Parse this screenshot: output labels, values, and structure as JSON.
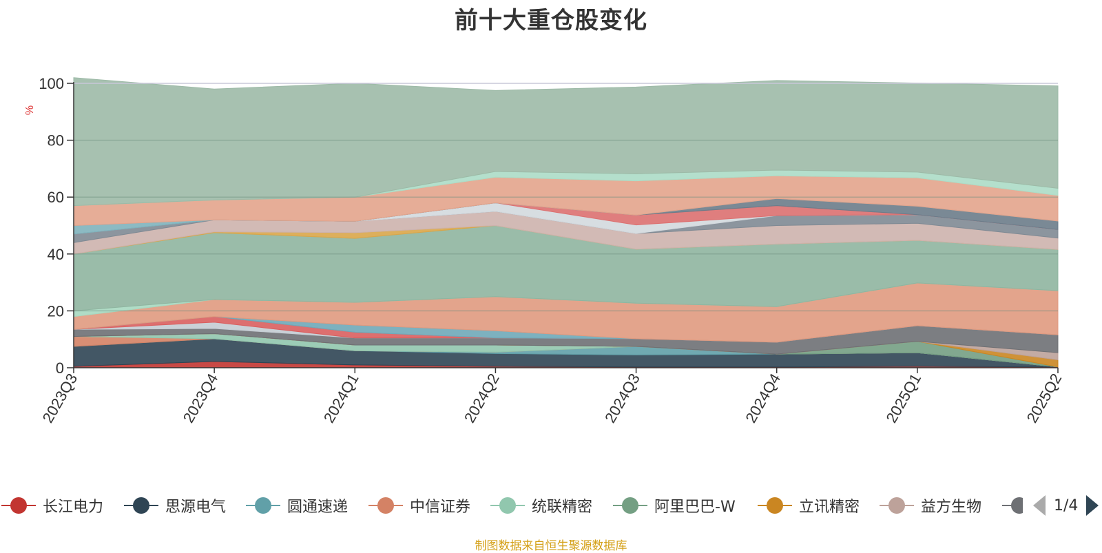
{
  "title": "前十大重仓股变化",
  "source_note": "制图数据来自恒生聚源数据库",
  "pager": {
    "text": "1/4"
  },
  "chart_data": {
    "type": "area",
    "stacked": true,
    "title": "前十大重仓股变化",
    "ylabel": "%",
    "ylim": [
      0,
      100
    ],
    "yticks": [
      0,
      20,
      40,
      60,
      80,
      100
    ],
    "grid": true,
    "legend_position": "bottom",
    "categories": [
      "2023Q3",
      "2023Q4",
      "2024Q1",
      "2024Q2",
      "2024Q3",
      "2024Q4",
      "2025Q1",
      "2025Q2"
    ],
    "series": [
      {
        "name": "长江电力",
        "color": "#c23531",
        "values": [
          0.5,
          2.2,
          1.0,
          0.5,
          0.3,
          0.3,
          0.5,
          0.3
        ]
      },
      {
        "name": "思源电气",
        "color": "#2f4554",
        "values": [
          7.0,
          8.0,
          5.0,
          4.5,
          4.2,
          4.5,
          4.8,
          0.0
        ]
      },
      {
        "name": "圆通速递",
        "color": "#61a0a8",
        "values": [
          0.0,
          0.0,
          0.0,
          0.5,
          3.0,
          0.0,
          0.0,
          0.0
        ]
      },
      {
        "name": "中信证券",
        "color": "#d48265",
        "values": [
          3.5,
          0.0,
          0.0,
          0.0,
          0.0,
          0.0,
          0.0,
          0.0
        ]
      },
      {
        "name": "统联精密",
        "color": "#91c7ae",
        "values": [
          0.0,
          1.8,
          2.0,
          2.5,
          0.0,
          0.0,
          0.0,
          0.0
        ]
      },
      {
        "name": "阿里巴巴-W",
        "color": "#749f83",
        "values": [
          0.0,
          0.0,
          0.0,
          0.0,
          0.0,
          0.0,
          4.0,
          0.0
        ]
      },
      {
        "name": "立讯精密",
        "color": "#ca8622",
        "values": [
          0.0,
          0.0,
          0.0,
          0.0,
          0.0,
          0.0,
          0.0,
          2.5
        ]
      },
      {
        "name": "益方生物",
        "color": "#bda29a",
        "values": [
          0.0,
          0.0,
          0.0,
          0.0,
          0.0,
          0.0,
          0.0,
          2.5
        ]
      },
      {
        "name": "",
        "color": "#6e7074",
        "values": [
          2.5,
          1.8,
          2.5,
          2.5,
          2.7,
          4.2,
          5.5,
          6.3
        ]
      },
      {
        "name": "",
        "color": "#c4ccd3",
        "values": [
          0.0,
          2.2,
          0.0,
          0.0,
          0.0,
          0.0,
          0.0,
          0.0
        ]
      },
      {
        "name": "",
        "color": "#d95f5f",
        "values": [
          0.0,
          2.0,
          2.0,
          0.0,
          0.0,
          0.0,
          0.0,
          0.0
        ]
      },
      {
        "name": "",
        "color": "#6fa8b8",
        "values": [
          0.0,
          0.0,
          2.5,
          2.5,
          0.0,
          0.0,
          0.0,
          0.0
        ]
      },
      {
        "name": "",
        "color": "#e09a7f",
        "values": [
          4.5,
          6.0,
          8.0,
          12.0,
          12.5,
          12.5,
          15.0,
          15.5
        ]
      },
      {
        "name": "",
        "color": "#a7d8c0",
        "values": [
          2.0,
          0.0,
          0.0,
          0.0,
          0.0,
          0.0,
          0.0,
          0.0
        ]
      },
      {
        "name": "",
        "color": "#8fb5a0",
        "values": [
          20.0,
          23.5,
          22.5,
          25.0,
          19.0,
          22.0,
          15.0,
          14.5
        ]
      },
      {
        "name": "",
        "color": "#d9a64a",
        "values": [
          0.0,
          0.3,
          2.0,
          0.0,
          0.0,
          0.0,
          0.0,
          0.0
        ]
      },
      {
        "name": "",
        "color": "#cdb3ad",
        "values": [
          4.0,
          4.2,
          4.0,
          5.0,
          5.5,
          6.5,
          6.0,
          4.0
        ]
      },
      {
        "name": "",
        "color": "#7f8a94",
        "values": [
          3.0,
          0.0,
          0.0,
          0.0,
          0.0,
          3.5,
          3.0,
          3.0
        ]
      },
      {
        "name": "",
        "color": "#d3d9de",
        "values": [
          0.0,
          0.0,
          0.0,
          3.0,
          3.0,
          0.0,
          0.0,
          0.0
        ]
      },
      {
        "name": "",
        "color": "#dc7070",
        "values": [
          0.0,
          0.0,
          0.0,
          0.0,
          3.5,
          3.5,
          0.0,
          0.0
        ]
      },
      {
        "name": "",
        "color": "#6b7c8a",
        "values": [
          0.0,
          0.0,
          0.0,
          0.0,
          0.0,
          2.5,
          3.0,
          3.0
        ]
      },
      {
        "name": "",
        "color": "#7fb3bd",
        "values": [
          3.0,
          0.0,
          0.0,
          0.0,
          0.0,
          0.0,
          0.0,
          0.0
        ]
      },
      {
        "name": "",
        "color": "#e3a48c",
        "values": [
          7.0,
          7.0,
          8.5,
          9.0,
          12.0,
          8.0,
          10.0,
          9.0
        ]
      },
      {
        "name": "",
        "color": "#acdcc6",
        "values": [
          0.0,
          0.0,
          0.0,
          2.0,
          2.5,
          2.0,
          2.0,
          2.5
        ]
      },
      {
        "name": "",
        "color": "#9dbaa7",
        "values": [
          45.0,
          39.0,
          40.0,
          28.5,
          30.5,
          31.5,
          31.3,
          36.0
        ]
      }
    ]
  }
}
